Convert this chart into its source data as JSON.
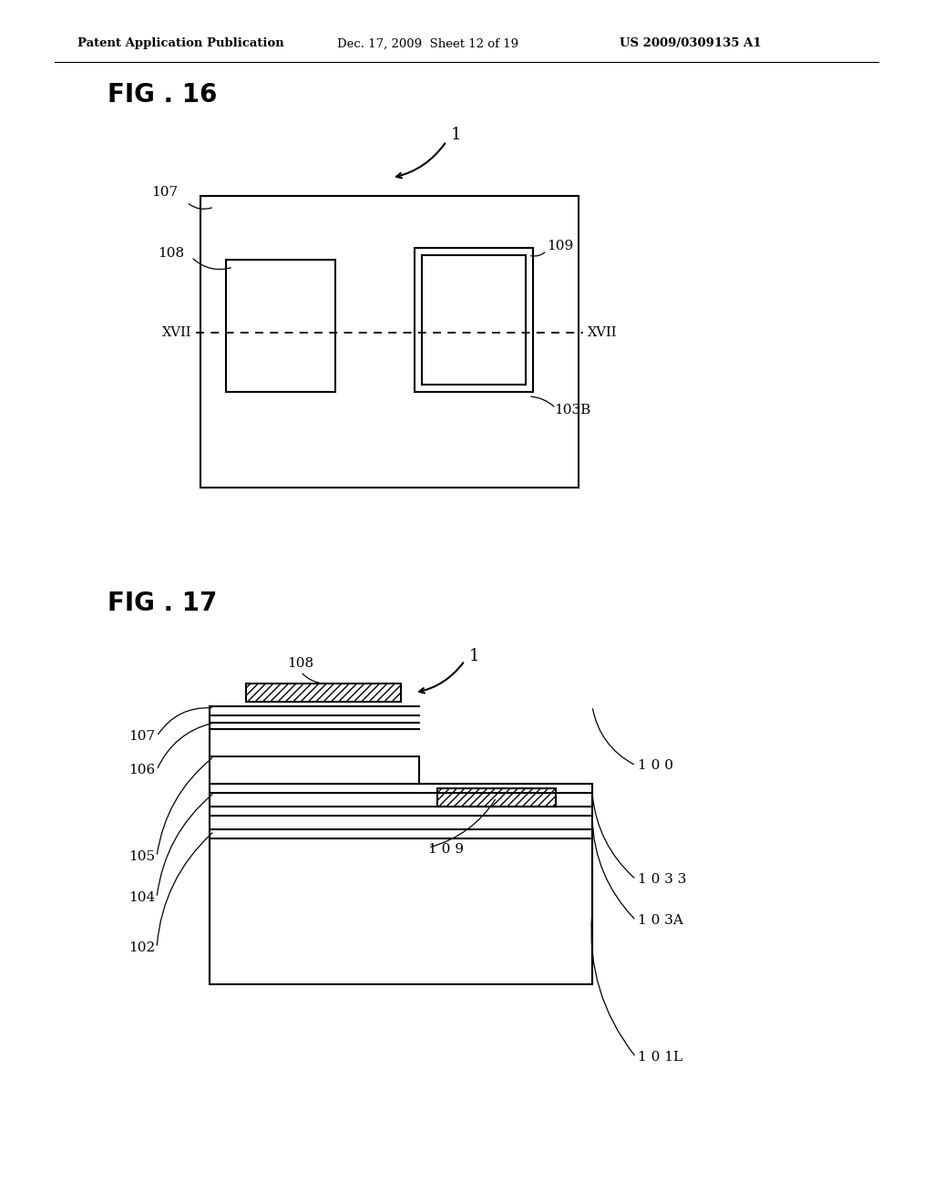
{
  "bg_color": "#ffffff",
  "header_text": "Patent Application Publication",
  "header_date": "Dec. 17, 2009  Sheet 12 of 19",
  "header_patent": "US 2009/0309135 A1",
  "fig16_title": "FIG . 16",
  "fig17_title": "FIG . 17",
  "line_color": "#000000"
}
